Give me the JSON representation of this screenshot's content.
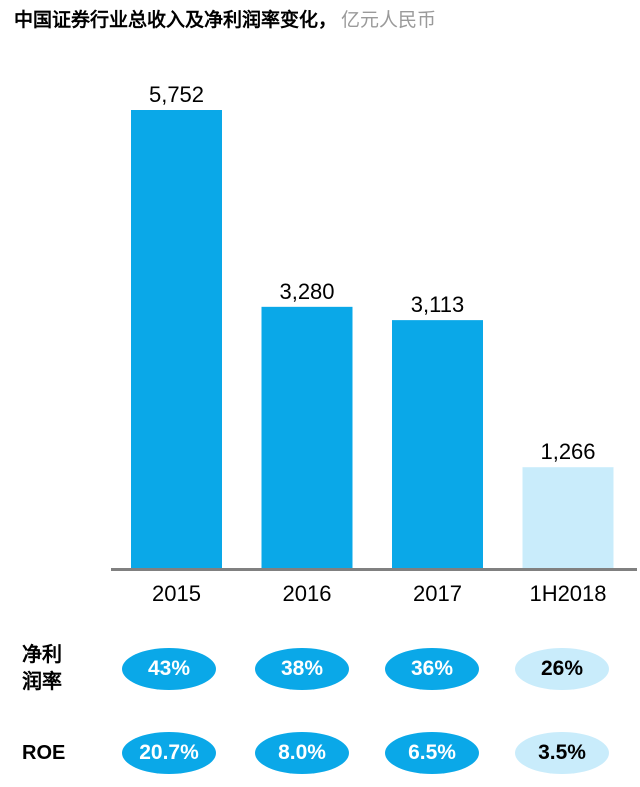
{
  "title": {
    "main": "中国证券行业总收入及净利润率变化，",
    "unit": "亿元人民币"
  },
  "chart_data": {
    "type": "bar",
    "categories": [
      "2015",
      "2016",
      "2017",
      "1H2018"
    ],
    "values": [
      5752,
      3280,
      3113,
      1266
    ],
    "value_labels": [
      "5,752",
      "3,280",
      "3,113",
      "1,266"
    ],
    "ylim": [
      0,
      5752
    ],
    "grid": false,
    "colors": [
      "#0aa8e8",
      "#0aa8e8",
      "#0aa8e8",
      "#c9ecfb"
    ]
  },
  "metrics": [
    {
      "label_line1": "净利",
      "label_line2": "润率",
      "values": [
        "43%",
        "38%",
        "36%",
        "26%"
      ]
    },
    {
      "label_line1": "ROE",
      "label_line2": "",
      "values": [
        "20.7%",
        "8.0%",
        "6.5%",
        "3.5%"
      ]
    }
  ],
  "colors": {
    "bar_primary": "#0aa8e8",
    "bar_partial": "#c9ecfb",
    "axis": "#808080",
    "unit_text": "#9a9a9a"
  }
}
